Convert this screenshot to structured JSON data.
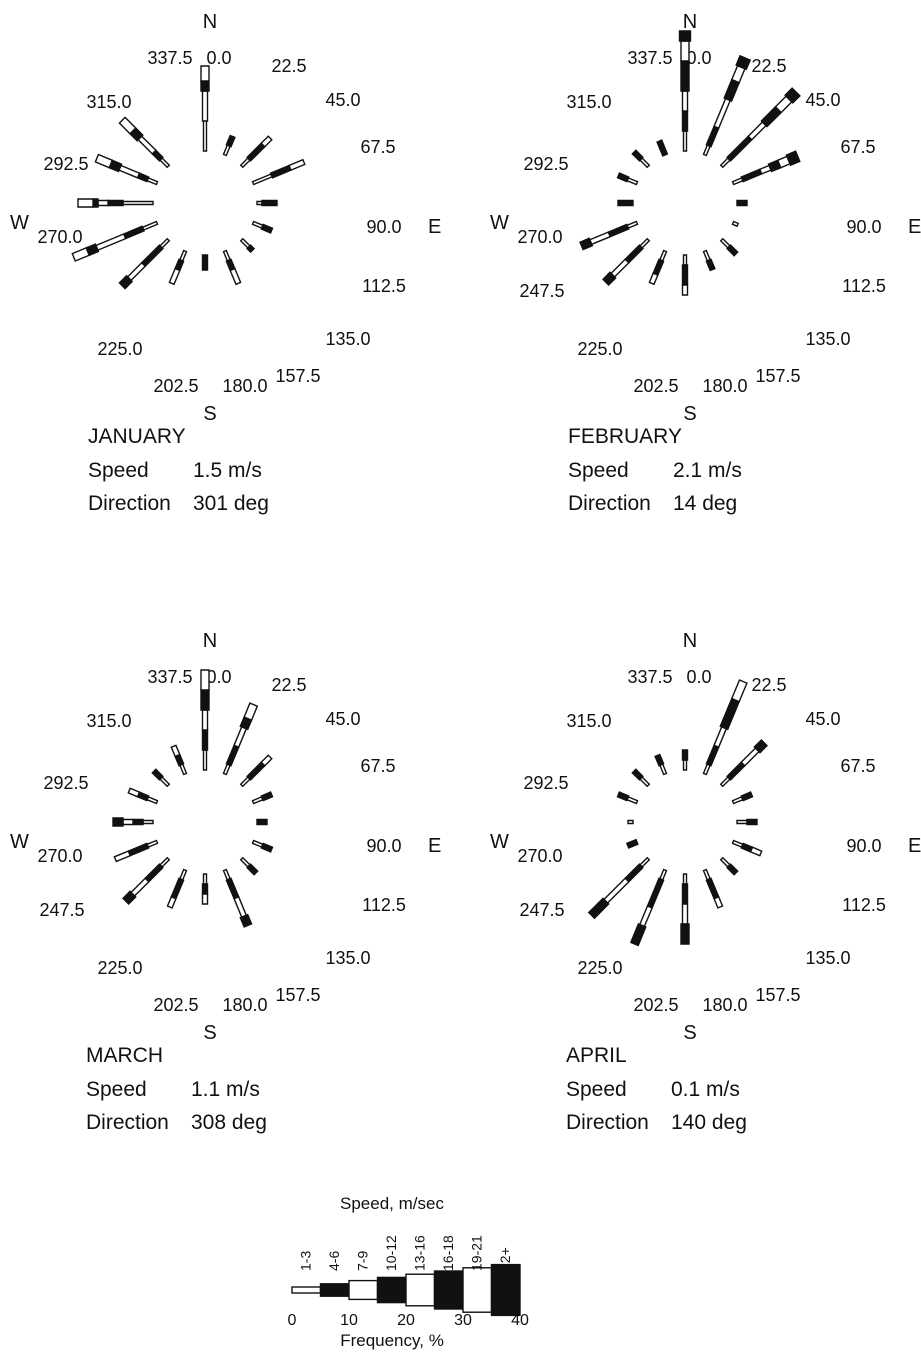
{
  "chart_data": {
    "type": "windrose",
    "compass": {
      "north": "N",
      "south": "S",
      "west": "W",
      "east": "E"
    },
    "direction_labels": [
      "0.0",
      "22.5",
      "45.0",
      "67.5",
      "90.0",
      "112.5",
      "135.0",
      "157.5",
      "180.0",
      "202.5",
      "225.0",
      "247.5",
      "270.0",
      "292.5",
      "315.0",
      "337.5"
    ],
    "speed_classes": [
      "1-3",
      "4-6",
      "7-9",
      "10-12",
      "13-16",
      "16-18",
      "19-21",
      "22+"
    ],
    "class_colors": [
      "#ffffff",
      "#111111",
      "#ffffff",
      "#111111",
      "#ffffff",
      "#111111",
      "#ffffff",
      "#111111"
    ],
    "roses": [
      {
        "month": "JANUARY",
        "speed_label": "Speed",
        "speed_value": "1.5 m/s",
        "direction_label": "Direction",
        "direction_value": "301 deg",
        "shown_labels": [
          "0.0",
          "22.5",
          "45.0",
          "67.5",
          "90.0",
          "112.5",
          "135.0",
          "157.5",
          "180.0",
          "202.5",
          "225.0",
          "270.0",
          "292.5",
          "315.0",
          "337.5"
        ],
        "frequencies": [
          [
            3,
            0,
            3,
            1,
            1.5,
            0,
            0,
            0
          ],
          [
            1,
            1,
            0,
            0,
            0,
            0,
            0,
            0
          ],
          [
            1,
            2,
            1,
            0,
            0,
            0,
            0,
            0
          ],
          [
            2,
            2,
            1.5,
            0,
            0,
            0,
            0,
            0
          ],
          [
            0.5,
            1.5,
            0,
            0,
            0,
            0,
            0,
            0
          ],
          [
            1,
            1,
            0,
            0,
            0,
            0,
            0,
            0
          ],
          [
            1,
            0.5,
            0,
            0,
            0,
            0,
            0,
            0
          ],
          [
            1,
            1,
            1.5,
            0,
            0,
            0,
            0,
            0
          ],
          [
            0,
            1.5,
            0,
            0,
            0,
            0,
            0,
            0
          ],
          [
            1,
            1,
            1.5,
            0,
            0,
            0,
            0,
            0
          ],
          [
            1,
            2.5,
            2,
            1,
            0,
            0,
            0,
            0
          ],
          [
            1.5,
            2,
            3,
            1,
            1.5,
            0,
            0,
            0
          ],
          [
            3,
            1.5,
            1,
            0.5,
            1.5,
            0,
            0,
            0
          ],
          [
            1,
            1,
            2,
            1,
            1.5,
            0,
            0,
            0
          ],
          [
            1,
            1,
            2,
            1,
            1.5,
            0,
            0,
            0
          ],
          [
            0,
            0,
            0,
            0,
            0,
            0,
            0,
            0
          ]
        ]
      },
      {
        "month": "FEBRUARY",
        "speed_label": "Speed",
        "speed_value": "2.1 m/s",
        "direction_label": "Direction",
        "direction_value": "14 deg",
        "shown_labels": [
          "0.0",
          "22.5",
          "45.0",
          "67.5",
          "90.0",
          "112.5",
          "135.0",
          "157.5",
          "180.0",
          "202.5",
          "225.0",
          "247.5",
          "270.0",
          "292.5",
          "315.0",
          "337.5"
        ],
        "frequencies": [
          [
            2,
            2,
            2,
            3,
            2,
            1,
            0,
            0
          ],
          [
            1,
            2,
            3,
            2,
            1.5,
            1,
            0,
            0
          ],
          [
            1,
            3,
            2,
            2,
            1.5,
            1,
            0,
            0
          ],
          [
            1,
            2,
            1,
            1,
            1,
            1,
            0,
            0
          ],
          [
            0,
            1,
            0,
            0,
            0,
            0,
            0,
            0
          ],
          [
            0.5,
            0,
            0,
            0,
            0,
            0,
            0,
            0
          ],
          [
            1,
            1,
            0,
            0,
            0,
            0,
            0,
            0
          ],
          [
            1,
            1,
            0,
            0,
            0,
            0,
            0,
            0
          ],
          [
            1,
            2,
            1,
            0,
            0,
            0,
            0,
            0
          ],
          [
            1,
            1.5,
            1,
            0,
            0,
            0,
            0,
            0
          ],
          [
            1,
            2,
            2,
            1,
            0,
            0,
            0,
            0
          ],
          [
            1,
            2,
            2,
            1,
            0,
            0,
            0,
            0
          ],
          [
            0,
            1.5,
            0,
            0,
            0,
            0,
            0,
            0
          ],
          [
            1,
            1,
            0,
            0,
            0,
            0,
            0,
            0
          ],
          [
            1,
            1,
            0,
            0,
            0,
            0,
            0,
            0
          ],
          [
            0,
            1.5,
            0,
            0,
            0,
            0,
            0,
            0
          ]
        ]
      },
      {
        "month": "MARCH",
        "speed_label": "Speed",
        "speed_value": "1.1 m/s",
        "direction_label": "Direction",
        "direction_value": "308 deg",
        "shown_labels": [
          "0.0",
          "22.5",
          "45.0",
          "67.5",
          "90.0",
          "112.5",
          "135.0",
          "157.5",
          "180.0",
          "202.5",
          "225.0",
          "247.5",
          "270.0",
          "292.5",
          "315.0",
          "337.5"
        ],
        "frequencies": [
          [
            2,
            2,
            2,
            2,
            2,
            0,
            0,
            0
          ],
          [
            1,
            2,
            2,
            1,
            1.5,
            0,
            0,
            0
          ],
          [
            1,
            2,
            1,
            0,
            0,
            0,
            0,
            0
          ],
          [
            1,
            1,
            0,
            0,
            0,
            0,
            0,
            0
          ],
          [
            0,
            1,
            0,
            0,
            0,
            0,
            0,
            0
          ],
          [
            1,
            1,
            0,
            0,
            0,
            0,
            0,
            0
          ],
          [
            1,
            1,
            0,
            0,
            0,
            0,
            0,
            0
          ],
          [
            1,
            2,
            2,
            1,
            0,
            0,
            0,
            0
          ],
          [
            1,
            1,
            1,
            0,
            0,
            0,
            0,
            0
          ],
          [
            1,
            2,
            1,
            0,
            0,
            0,
            0,
            0
          ],
          [
            1,
            2,
            2,
            1,
            0,
            0,
            0,
            0
          ],
          [
            1,
            2,
            1.5,
            0,
            0,
            0,
            0,
            0
          ],
          [
            1,
            1,
            1,
            1,
            0,
            0,
            0,
            0
          ],
          [
            1,
            1,
            1,
            0,
            0,
            0,
            0,
            0
          ],
          [
            1,
            1,
            0,
            0,
            0,
            0,
            0,
            0
          ],
          [
            1,
            1,
            1,
            0,
            0,
            0,
            0,
            0
          ]
        ]
      },
      {
        "month": "APRIL",
        "speed_label": "Speed",
        "speed_value": "0.1 m/s",
        "direction_label": "Direction",
        "direction_value": "140 deg",
        "shown_labels": [
          "0.0",
          "22.5",
          "45.0",
          "67.5",
          "90.0",
          "112.5",
          "135.0",
          "157.5",
          "180.0",
          "202.5",
          "225.0",
          "247.5",
          "270.0",
          "292.5",
          "315.0",
          "337.5"
        ],
        "frequencies": [
          [
            1,
            1,
            0,
            0,
            0,
            0,
            0,
            0
          ],
          [
            1,
            2,
            2,
            3,
            2,
            0,
            0,
            0
          ],
          [
            1,
            2,
            2,
            1,
            0,
            0,
            0,
            0
          ],
          [
            1,
            1,
            0,
            0,
            0,
            0,
            0,
            0
          ],
          [
            1,
            1,
            0,
            0,
            0,
            0,
            0,
            0
          ],
          [
            1,
            1,
            1,
            0,
            0,
            0,
            0,
            0
          ],
          [
            1,
            1,
            0,
            0,
            0,
            0,
            0,
            0
          ],
          [
            1,
            2,
            1,
            0,
            0,
            0,
            0,
            0
          ],
          [
            1,
            2,
            2,
            2,
            0,
            0,
            0,
            0
          ],
          [
            1,
            3,
            2,
            2,
            0,
            0,
            0,
            0
          ],
          [
            1,
            2,
            3,
            2,
            0,
            0,
            0,
            0
          ],
          [
            0,
            1,
            0,
            0,
            0,
            0,
            0,
            0
          ],
          [
            0.5,
            0,
            0,
            0,
            0,
            0,
            0,
            0
          ],
          [
            1,
            1,
            0,
            0,
            0,
            0,
            0,
            0
          ],
          [
            1,
            1,
            0,
            0,
            0,
            0,
            0,
            0
          ],
          [
            1,
            1,
            0,
            0,
            0,
            0,
            0,
            0
          ]
        ]
      }
    ],
    "legend": {
      "title": "Speed, m/sec",
      "xlabel": "Frequency, %",
      "ticks": [
        "0",
        "10",
        "20",
        "30",
        "40"
      ]
    }
  }
}
